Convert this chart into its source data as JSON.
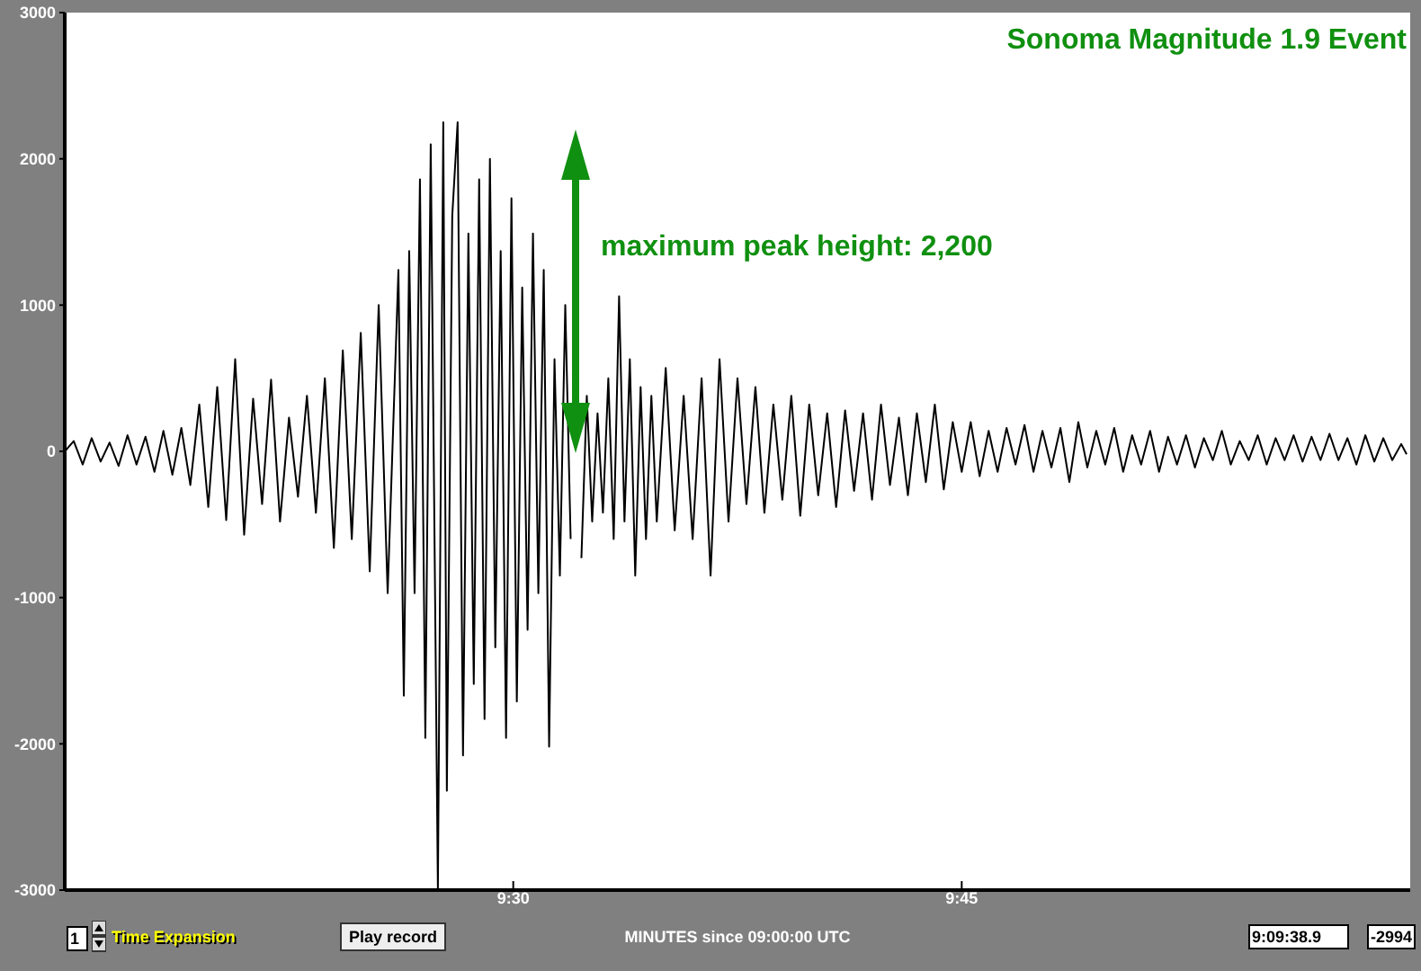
{
  "chart_data": {
    "type": "line",
    "title": "Sonoma Magnitude 1.9 Event",
    "xlabel": "MINUTES since 09:00:00 UTC",
    "x": [
      9.25,
      9.255,
      9.26,
      9.265,
      9.27,
      9.275,
      9.28,
      9.285,
      9.29,
      9.295,
      9.3,
      9.305,
      9.31,
      9.315,
      9.32,
      9.325,
      9.33,
      9.335,
      9.34,
      9.345,
      9.35,
      9.355,
      9.36,
      9.365,
      9.37,
      9.375,
      9.38,
      9.385,
      9.39,
      9.395,
      9.4,
      9.405,
      9.41,
      9.415,
      9.42,
      9.425,
      9.43,
      9.436,
      9.439,
      9.442,
      9.445,
      9.448,
      9.451,
      9.454,
      9.458,
      9.461,
      9.463,
      9.466,
      9.469,
      9.472,
      9.475,
      9.478,
      9.481,
      9.484,
      9.487,
      9.49,
      9.493,
      9.496,
      9.499,
      9.502,
      9.505,
      9.508,
      9.511,
      9.514,
      9.517,
      9.52,
      9.523,
      9.526,
      9.529,
      9.532,
      9.535,
      9.538,
      9.541,
      9.544,
      9.547,
      9.55,
      9.553,
      9.556,
      9.559,
      9.562,
      9.565,
      9.568,
      9.571,
      9.574,
      9.577,
      9.58,
      9.585,
      9.59,
      9.595,
      9.6,
      9.605,
      9.61,
      9.615,
      9.62,
      9.625,
      9.63,
      9.635,
      9.64,
      9.645,
      9.65,
      9.655,
      9.66,
      9.665,
      9.67,
      9.675,
      9.68,
      9.685,
      9.69,
      9.695,
      9.7,
      9.705,
      9.71,
      9.715,
      9.72,
      9.725,
      9.73,
      9.735,
      9.74,
      9.745,
      9.75,
      9.755,
      9.76,
      9.765,
      9.77,
      9.775,
      9.78,
      9.785,
      9.79,
      9.795,
      9.8,
      9.805,
      9.81,
      9.815,
      9.82,
      9.825,
      9.83,
      9.835,
      9.84,
      9.845,
      9.85,
      9.855,
      9.86,
      9.865,
      9.87,
      9.875,
      9.88,
      9.885,
      9.89,
      9.895,
      9.9,
      9.905,
      9.91,
      9.915,
      9.92,
      9.925,
      9.93,
      9.935,
      9.94,
      9.945,
      9.95,
      9.955,
      9.96,
      9.965,
      9.97,
      9.975,
      9.98,
      9.985,
      9.99,
      9.995,
      9.998
    ],
    "series": [
      {
        "color": "#000000",
        "values": [
          0,
          70,
          -90,
          90,
          -70,
          60,
          -100,
          110,
          -90,
          100,
          -140,
          140,
          -160,
          160,
          -230,
          320,
          -380,
          440,
          -470,
          630,
          -570,
          360,
          -360,
          490,
          -480,
          230,
          -310,
          380,
          -420,
          500,
          -660,
          690,
          -600,
          810,
          -820,
          1000,
          -970,
          1240,
          -1670,
          1370,
          -970,
          1860,
          -1960,
          2100,
          -2990,
          2250,
          -2320,
          1610,
          2250,
          -2080,
          1490,
          -1590,
          1860,
          -1830,
          2000,
          -1340,
          1370,
          -1960,
          1730,
          -1710,
          1120,
          -1220,
          1490,
          -970,
          1240,
          -2020,
          630,
          -850,
          1000,
          -600,
          null,
          -730,
          380,
          -480,
          260,
          -420,
          500,
          -600,
          1060,
          -480,
          630,
          -850,
          440,
          -600,
          380,
          -480,
          570,
          -540,
          380,
          -600,
          500,
          -850,
          630,
          -480,
          500,
          -360,
          440,
          -420,
          320,
          -330,
          380,
          -440,
          320,
          -300,
          260,
          -380,
          280,
          -270,
          260,
          -330,
          320,
          -230,
          230,
          -300,
          260,
          -210,
          320,
          -260,
          200,
          -140,
          200,
          -170,
          140,
          -140,
          160,
          -90,
          180,
          -140,
          140,
          -110,
          160,
          -210,
          200,
          -110,
          140,
          -90,
          160,
          -140,
          110,
          -90,
          140,
          -140,
          100,
          -90,
          110,
          -110,
          90,
          -60,
          140,
          -90,
          70,
          -60,
          110,
          -90,
          90,
          -60,
          110,
          -70,
          100,
          -60,
          120,
          -60,
          90,
          -90,
          110,
          -70,
          90,
          -60,
          50,
          -20
        ]
      }
    ],
    "xlim": [
      9.25,
      10
    ],
    "xticks": [
      {
        "value": 9.5,
        "label": "9:30"
      },
      {
        "value": 9.75,
        "label": "9:45"
      }
    ],
    "ylim": [
      -3000,
      3000
    ],
    "yticks": [
      -3000,
      -2000,
      -1000,
      0,
      1000,
      2000,
      3000
    ],
    "marker": "none",
    "line_style": "solid",
    "annotations": [
      "maximum peak height: 2,200",
      "1",
      "Time Expansion",
      "Play record",
      "9:09:38.9",
      "-2994"
    ]
  }
}
